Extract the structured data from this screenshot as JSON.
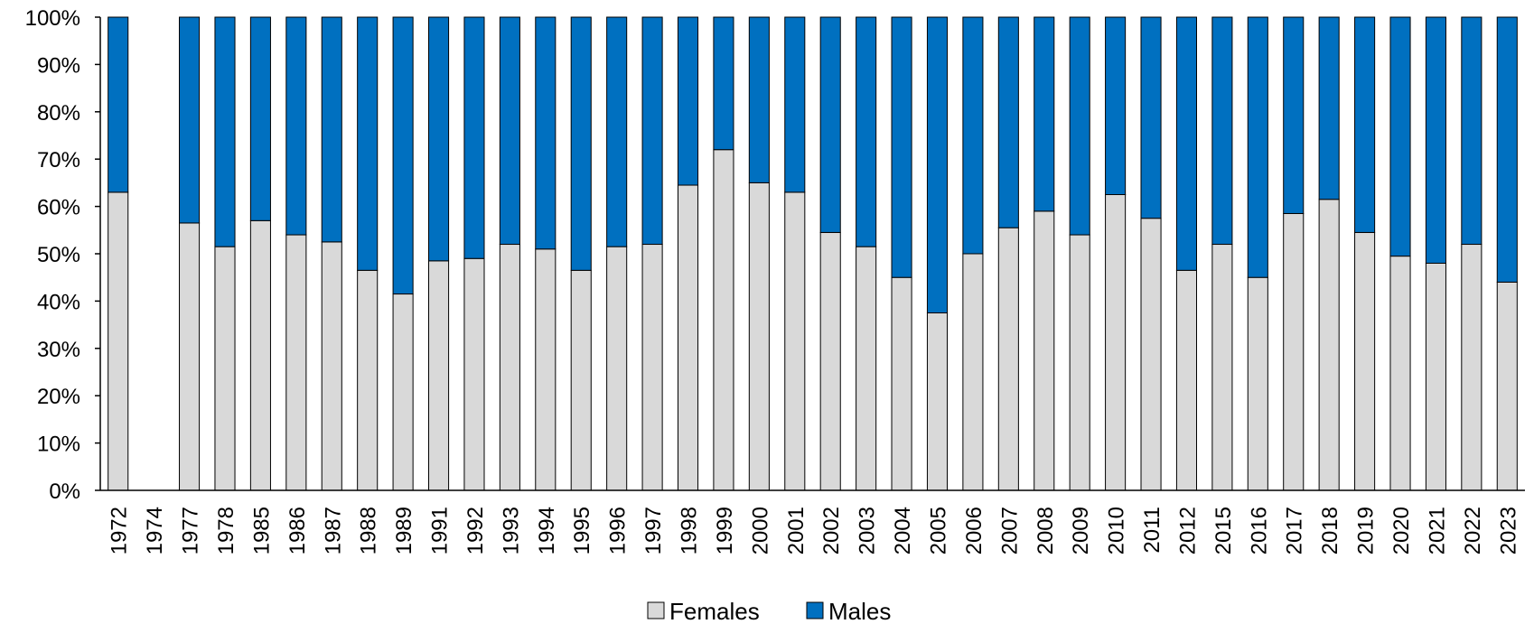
{
  "chart_data": {
    "type": "bar",
    "stacked": true,
    "percent_stacked": true,
    "title": "",
    "xlabel": "",
    "ylabel": "",
    "ylim": [
      0,
      100
    ],
    "y_ticks": [
      "0%",
      "10%",
      "20%",
      "30%",
      "40%",
      "50%",
      "60%",
      "70%",
      "80%",
      "90%",
      "100%"
    ],
    "grid": false,
    "legend_position": "bottom",
    "categories": [
      "1972",
      "1974",
      "1977",
      "1978",
      "1985",
      "1986",
      "1987",
      "1988",
      "1989",
      "1991",
      "1992",
      "1993",
      "1994",
      "1995",
      "1996",
      "1997",
      "1998",
      "1999",
      "2000",
      "2001",
      "2002",
      "2003",
      "2004",
      "2005",
      "2006",
      "2007",
      "2008",
      "2009",
      "2010",
      "2011",
      "2012",
      "2015",
      "2016",
      "2017",
      "2018",
      "2019",
      "2020",
      "2021",
      "2022",
      "2023"
    ],
    "series": [
      {
        "name": "Females",
        "color": "#d9d9d9",
        "values": [
          63,
          null,
          56.5,
          51.5,
          57,
          54,
          52.5,
          46.5,
          41.5,
          48.5,
          49,
          52,
          51,
          46.5,
          51.5,
          52,
          64.5,
          72,
          65,
          63,
          54.5,
          51.5,
          45,
          37.5,
          50,
          55.5,
          59,
          54,
          62.5,
          57.5,
          46.5,
          52,
          45,
          58.5,
          61.5,
          54.5,
          49.5,
          48,
          52,
          44
        ]
      },
      {
        "name": "Males",
        "color": "#0070c0",
        "values": [
          37,
          null,
          43.5,
          48.5,
          43,
          46,
          47.5,
          53.5,
          58.5,
          51.5,
          51,
          48,
          49,
          53.5,
          48.5,
          48,
          35.5,
          28,
          35,
          37,
          45.5,
          48.5,
          55,
          62.5,
          50,
          44.5,
          41,
          46,
          37.5,
          42.5,
          53.5,
          48,
          55,
          41.5,
          38.5,
          45.5,
          50.5,
          52,
          48,
          56
        ]
      }
    ]
  }
}
